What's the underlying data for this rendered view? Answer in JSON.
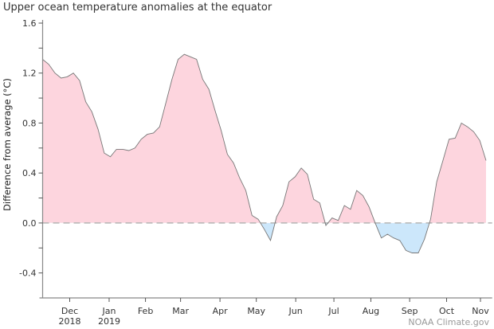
{
  "chart_data": {
    "type": "area",
    "title": "Upper ocean temperature anomalies at the equator",
    "ylabel": "Difference from average (°C)",
    "xlabel": "",
    "ylim": [
      -0.6,
      1.6
    ],
    "yticks": [
      -0.4,
      0.0,
      0.4,
      0.8,
      1.2,
      1.6
    ],
    "ytick_labels": [
      "-0.4",
      "0.0",
      "0.4",
      "0.8",
      "1.2",
      "1.6"
    ],
    "x_unit": "week index (weekly data, late Nov 2018 to early Nov 2019)",
    "xlim": [
      0,
      73
    ],
    "xticks": [
      {
        "pos": 4.4,
        "label": "Dec",
        "year": "2018"
      },
      {
        "pos": 10.8,
        "label": "Jan",
        "year": "2019"
      },
      {
        "pos": 16.7,
        "label": "Feb",
        "year": ""
      },
      {
        "pos": 22.4,
        "label": "Mar",
        "year": ""
      },
      {
        "pos": 28.8,
        "label": "Apr",
        "year": ""
      },
      {
        "pos": 34.7,
        "label": "May",
        "year": ""
      },
      {
        "pos": 41.1,
        "label": "Jun",
        "year": ""
      },
      {
        "pos": 47.3,
        "label": "Jul",
        "year": ""
      },
      {
        "pos": 53.3,
        "label": "Aug",
        "year": ""
      },
      {
        "pos": 59.6,
        "label": "Sep",
        "year": ""
      },
      {
        "pos": 65.6,
        "label": "Oct",
        "year": ""
      },
      {
        "pos": 71.1,
        "label": "Nov",
        "year": ""
      }
    ],
    "values": [
      1.31,
      1.27,
      1.2,
      1.16,
      1.17,
      1.2,
      1.14,
      0.97,
      0.89,
      0.75,
      0.56,
      0.53,
      0.59,
      0.59,
      0.58,
      0.6,
      0.67,
      0.71,
      0.72,
      0.77,
      0.96,
      1.15,
      1.31,
      1.35,
      1.33,
      1.31,
      1.15,
      1.07,
      0.9,
      0.74,
      0.55,
      0.48,
      0.36,
      0.26,
      0.06,
      0.03,
      -0.05,
      -0.14,
      0.05,
      0.14,
      0.33,
      0.37,
      0.44,
      0.39,
      0.19,
      0.16,
      -0.02,
      0.04,
      0.02,
      0.14,
      0.11,
      0.26,
      0.22,
      0.13,
      0.0,
      -0.12,
      -0.09,
      -0.12,
      -0.14,
      -0.22,
      -0.24,
      -0.24,
      -0.13,
      0.03,
      0.33,
      0.5,
      0.67,
      0.68,
      0.8,
      0.77,
      0.73,
      0.66,
      0.5
    ],
    "grid": false,
    "baseline": 0.0,
    "colors": {
      "positive": "#fdd5de",
      "negative": "#cce7fb",
      "line": "#777777",
      "baseline": "#b5b5b5",
      "axis": "#888888"
    }
  },
  "credit": "NOAA Climate.gov"
}
